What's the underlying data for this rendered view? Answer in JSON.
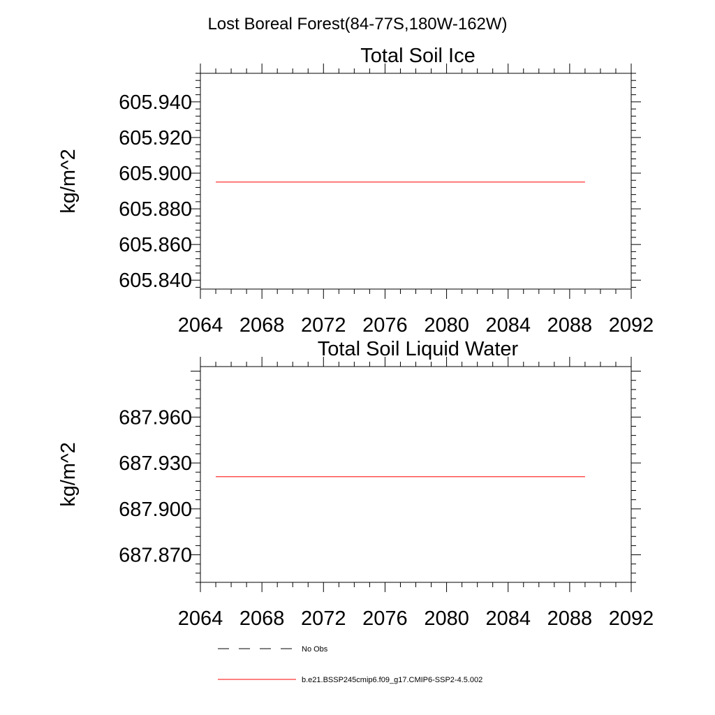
{
  "figure": {
    "suptitle": "Lost Boreal Forest(84-77S,180W-162W)"
  },
  "chart_data": [
    {
      "type": "line",
      "title": "Total Soil Ice",
      "ylabel": "kg/m^2",
      "xlim": [
        2064,
        2092
      ],
      "ylim": [
        605.835,
        605.956
      ],
      "xticks": [
        2064,
        2068,
        2072,
        2076,
        2080,
        2084,
        2088,
        2092
      ],
      "xtick_labels": [
        "2064",
        "2068",
        "2072",
        "2076",
        "2080",
        "2084",
        "2088",
        "2092"
      ],
      "yticks": [
        605.84,
        605.86,
        605.88,
        605.9,
        605.92,
        605.94
      ],
      "ytick_labels": [
        "605.840",
        "605.860",
        "605.880",
        "605.900",
        "605.920",
        "605.940"
      ],
      "series": [
        {
          "name": "b.e21.BSSP245cmip6.f09_g17.CMIP6-SSP2-4.5.002",
          "color": "#ff0000",
          "x": [
            2065,
            2089
          ],
          "y": [
            605.895,
            605.895
          ]
        }
      ]
    },
    {
      "type": "line",
      "title": "Total Soil Liquid Water",
      "ylabel": "kg/m^2",
      "xlim": [
        2064,
        2092
      ],
      "ylim": [
        687.852,
        687.993
      ],
      "xticks": [
        2064,
        2068,
        2072,
        2076,
        2080,
        2084,
        2088,
        2092
      ],
      "xtick_labels": [
        "2064",
        "2068",
        "2072",
        "2076",
        "2080",
        "2084",
        "2088",
        "2092"
      ],
      "yticks": [
        687.87,
        687.9,
        687.93,
        687.96
      ],
      "ytick_labels": [
        "687.870",
        "687.900",
        "687.930",
        "687.960"
      ],
      "series": [
        {
          "name": "b.e21.BSSP245cmip6.f09_g17.CMIP6-SSP2-4.5.002",
          "color": "#ff0000",
          "x": [
            2065,
            2089
          ],
          "y": [
            687.921,
            687.921
          ]
        }
      ]
    }
  ],
  "legend": {
    "placement": "bottom-left",
    "items": [
      {
        "label": "No Obs",
        "color": "#000000",
        "dash": true
      },
      {
        "label": "b.e21.BSSP245cmip6.f09_g17.CMIP6-SSP2-4.5.002",
        "color": "#ff0000",
        "dash": false
      }
    ]
  }
}
